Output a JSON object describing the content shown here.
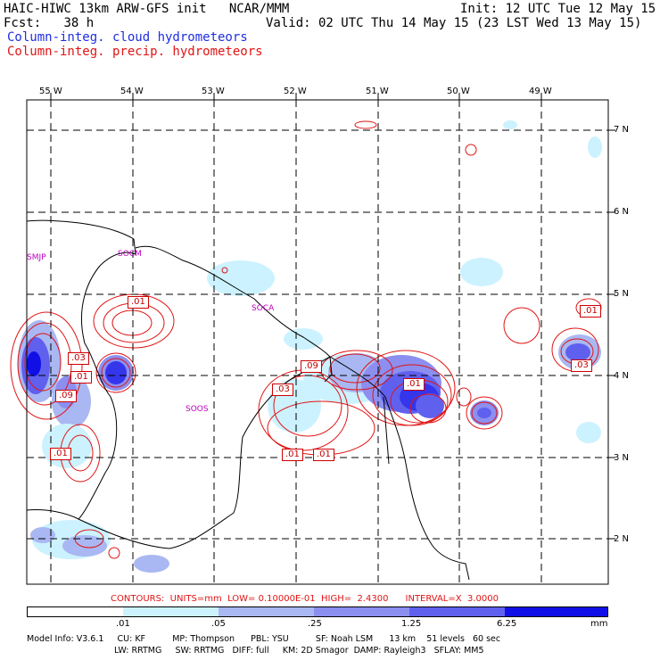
{
  "header": {
    "title": "HAIC-HIWC 13km ARW-GFS init   NCAR/MMM",
    "fcst_label": "Fcst:",
    "fcst_value": "38 h",
    "init": "Init: 12 UTC Tue 12 May 15",
    "valid": "Valid: 02 UTC Thu 14 May 15 (23 LST Wed 13 May 15)",
    "field1": "Column-integ. cloud hydrometeors",
    "field2": "Column-integ. precip. hydrometeors"
  },
  "colors": {
    "field1": "#1f2ee0",
    "field2": "#e01414",
    "site": "#c000c0"
  },
  "map": {
    "lon_labels": [
      "55 W",
      "54 W",
      "53 W",
      "52 W",
      "51 W",
      "50 W",
      "49 W"
    ],
    "lat_labels": [
      "7 N",
      "6 N",
      "5 N",
      "4 N",
      "3 N",
      "2 N"
    ],
    "sites": [
      "SMJP",
      "SOCM",
      "SOCA",
      "SOOS"
    ],
    "contour_labels": [
      ".01",
      ".03",
      ".01",
      ".09",
      ".01",
      ".09",
      ".03",
      ".01",
      ".01",
      ".01",
      ".01",
      ".03"
    ]
  },
  "contours_info": "CONTOURS:  UNITS=mm  LOW= 0.10000E-01  HIGH=  2.4300      INTERVAL=X  3.0000",
  "colorbar": {
    "ticks": [
      ".01",
      ".05",
      ".25",
      "1.25",
      "6.25"
    ],
    "units": "mm",
    "colors": [
      "#ffffff",
      "#ccf2ff",
      "#a9b8f2",
      "#8c8ff0",
      "#6060ef",
      "#3535ec",
      "#1010e6"
    ]
  },
  "model_info": {
    "line1": "Model Info: V3.6.1     CU: KF          MP: Thompson      PBL: YSU          SF: Noah LSM      13 km    51 levels   60 sec",
    "line2": "LW: RRTMG     SW: RRTMG   DIFF: full     KM: 2D Smagor  DAMP: Rayleigh3   SFLAY: MM5"
  }
}
